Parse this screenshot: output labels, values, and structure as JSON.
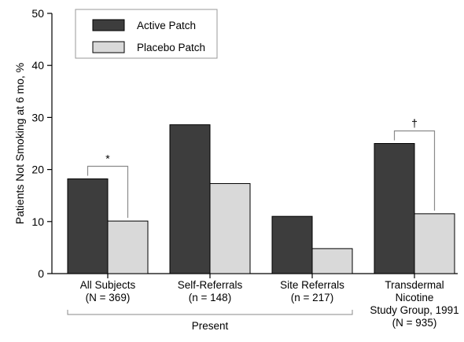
{
  "chart_data": {
    "type": "bar",
    "ylabel": "Patients Not Smoking at 6 mo, %",
    "ylim": [
      0,
      50
    ],
    "yticks": [
      0,
      10,
      20,
      30,
      40,
      50
    ],
    "categories": [
      [
        "All Subjects",
        "(N = 369)"
      ],
      [
        "Self-Referrals",
        "(n = 148)"
      ],
      [
        "Site Referrals",
        "(n = 217)"
      ],
      [
        "Transdermal",
        "Nicotine",
        "Study Group, 1991",
        "(N = 935)"
      ]
    ],
    "series": [
      {
        "name": "Active Patch",
        "color": "#3d3d3d",
        "values": [
          18.2,
          28.6,
          11.0,
          25.0
        ]
      },
      {
        "name": "Placebo Patch",
        "color": "#d9d9d9",
        "values": [
          10.1,
          17.3,
          4.8,
          11.5
        ]
      }
    ],
    "significance": [
      {
        "category": 0,
        "symbol": "*"
      },
      {
        "category": 3,
        "symbol": "†"
      }
    ],
    "group_label": "Present",
    "group_spans_categories": [
      0,
      1,
      2
    ],
    "legend_position": "top-left"
  }
}
